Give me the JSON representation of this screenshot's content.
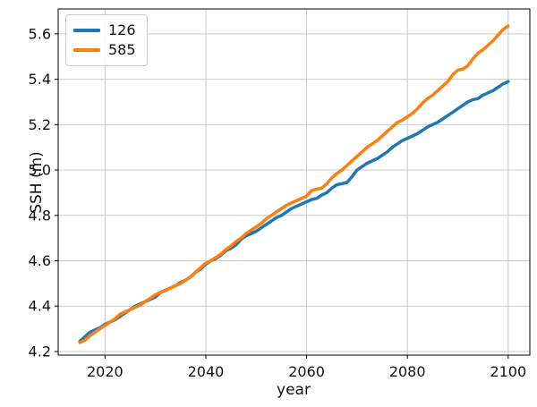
{
  "figure": {
    "background": "#ffffff"
  },
  "chart_data": {
    "type": "line",
    "title": "",
    "xlabel": "year",
    "ylabel": "SSH (m)",
    "grid": true,
    "legend_position": "upper left",
    "axis_color": "#000000",
    "grid_color": "#c9c9c9",
    "tick_label_color": "#111111",
    "xlim": [
      2010.7,
      2104.3
    ],
    "ylim": [
      4.184,
      5.71
    ],
    "xticks": [
      2020,
      2040,
      2060,
      2080,
      2100
    ],
    "yticks": [
      4.2,
      4.4,
      4.6,
      4.8,
      5.0,
      5.2,
      5.4,
      5.6
    ],
    "x": [
      2015,
      2016,
      2017,
      2018,
      2019,
      2020,
      2021,
      2022,
      2023,
      2024,
      2025,
      2026,
      2027,
      2028,
      2029,
      2030,
      2031,
      2032,
      2033,
      2034,
      2035,
      2036,
      2037,
      2038,
      2039,
      2040,
      2041,
      2042,
      2043,
      2044,
      2045,
      2046,
      2047,
      2048,
      2049,
      2050,
      2051,
      2052,
      2053,
      2054,
      2055,
      2056,
      2057,
      2058,
      2059,
      2060,
      2061,
      2062,
      2063,
      2064,
      2065,
      2066,
      2067,
      2068,
      2069,
      2070,
      2071,
      2072,
      2073,
      2074,
      2075,
      2076,
      2077,
      2078,
      2079,
      2080,
      2081,
      2082,
      2083,
      2084,
      2085,
      2086,
      2087,
      2088,
      2089,
      2090,
      2091,
      2092,
      2093,
      2094,
      2095,
      2096,
      2097,
      2098,
      2099,
      2100
    ],
    "series": [
      {
        "name": "126",
        "color": "#1f77b4",
        "values": [
          4.245,
          4.265,
          4.285,
          4.295,
          4.305,
          4.32,
          4.33,
          4.34,
          4.355,
          4.37,
          4.385,
          4.4,
          4.41,
          4.42,
          4.43,
          4.44,
          4.46,
          4.47,
          4.48,
          4.49,
          4.505,
          4.515,
          4.53,
          4.55,
          4.565,
          4.585,
          4.6,
          4.61,
          4.625,
          4.645,
          4.655,
          4.67,
          4.695,
          4.71,
          4.72,
          4.73,
          4.745,
          4.76,
          4.775,
          4.79,
          4.8,
          4.815,
          4.83,
          4.84,
          4.85,
          4.86,
          4.87,
          4.875,
          4.89,
          4.9,
          4.92,
          4.935,
          4.94,
          4.945,
          4.97,
          5.0,
          5.015,
          5.03,
          5.04,
          5.05,
          5.065,
          5.08,
          5.1,
          5.115,
          5.13,
          5.14,
          5.15,
          5.16,
          5.175,
          5.19,
          5.2,
          5.21,
          5.225,
          5.24,
          5.255,
          5.27,
          5.285,
          5.3,
          5.31,
          5.315,
          5.33,
          5.34,
          5.35,
          5.365,
          5.38,
          5.39
        ]
      },
      {
        "name": "585",
        "color": "#ff7f0e",
        "values": [
          4.24,
          4.25,
          4.27,
          4.285,
          4.3,
          4.315,
          4.33,
          4.345,
          4.365,
          4.375,
          4.385,
          4.395,
          4.405,
          4.42,
          4.435,
          4.45,
          4.46,
          4.47,
          4.48,
          4.49,
          4.5,
          4.515,
          4.53,
          4.55,
          4.57,
          4.59,
          4.6,
          4.615,
          4.63,
          4.65,
          4.665,
          4.685,
          4.7,
          4.72,
          4.735,
          4.75,
          4.765,
          4.785,
          4.8,
          4.815,
          4.83,
          4.845,
          4.855,
          4.865,
          4.875,
          4.885,
          4.91,
          4.915,
          4.92,
          4.94,
          4.965,
          4.985,
          5.0,
          5.02,
          5.04,
          5.06,
          5.08,
          5.1,
          5.115,
          5.13,
          5.15,
          5.17,
          5.19,
          5.21,
          5.22,
          5.235,
          5.25,
          5.27,
          5.295,
          5.315,
          5.33,
          5.35,
          5.37,
          5.39,
          5.42,
          5.44,
          5.445,
          5.46,
          5.49,
          5.515,
          5.53,
          5.55,
          5.57,
          5.595,
          5.62,
          5.635
        ]
      }
    ]
  }
}
